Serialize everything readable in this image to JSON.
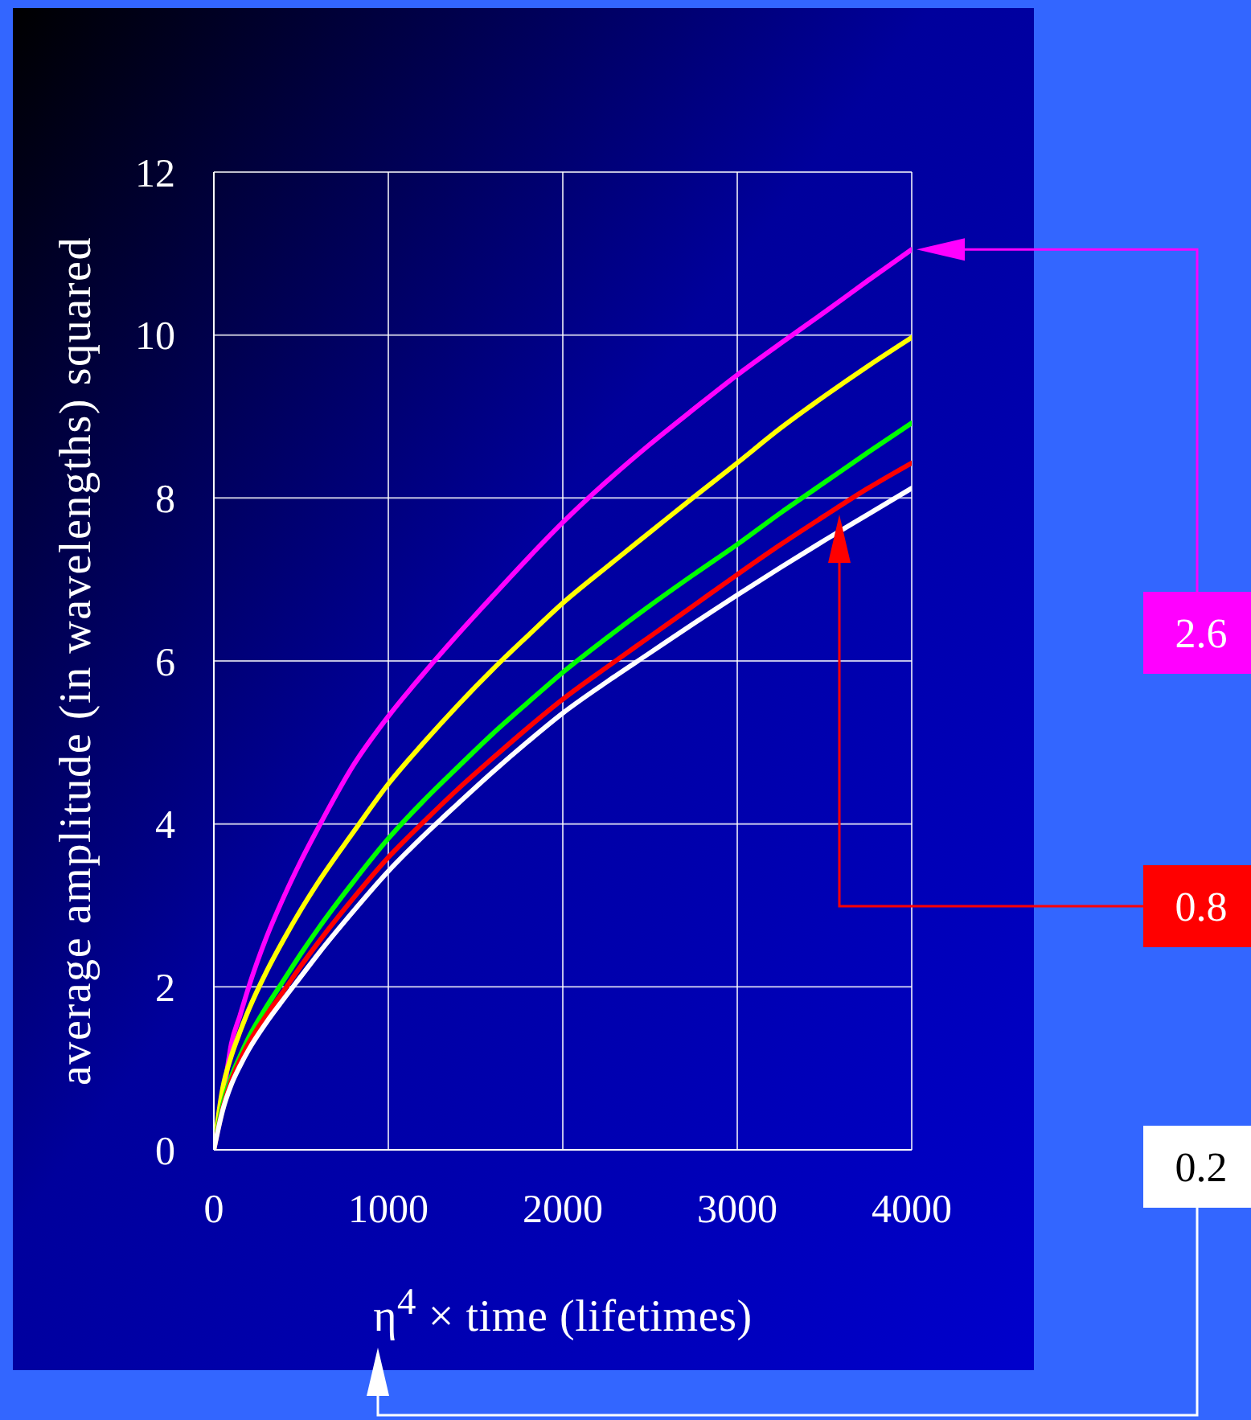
{
  "chart_data": {
    "type": "line",
    "xlabel": "η$^{4}$ × time (lifetimes)",
    "ylabel": "average amplitude (in wavelengths) squared",
    "x": [
      0,
      50,
      100,
      150,
      200,
      300,
      400,
      500,
      600,
      800,
      1000,
      1200,
      1400,
      1600,
      1800,
      2000,
      2250,
      2500,
      2750,
      3000,
      3250,
      3500,
      3750,
      4000
    ],
    "series": [
      {
        "name": "2.6",
        "color": "#ff00ff",
        "values": [
          0,
          0.6,
          1.3,
          1.65,
          2.0,
          2.6,
          3.1,
          3.55,
          3.96,
          4.72,
          5.32,
          5.84,
          6.33,
          6.8,
          7.26,
          7.7,
          8.2,
          8.66,
          9.09,
          9.51,
          9.9,
          10.28,
          10.67,
          11.05
        ]
      },
      {
        "color": "#ffff00",
        "values": [
          0,
          0.75,
          1.15,
          1.45,
          1.72,
          2.18,
          2.58,
          2.95,
          3.29,
          3.9,
          4.49,
          4.99,
          5.46,
          5.9,
          6.31,
          6.71,
          7.15,
          7.58,
          8.01,
          8.43,
          8.86,
          9.25,
          9.62,
          9.97
        ]
      },
      {
        "color": "#00ff00",
        "values": [
          0,
          0.55,
          0.9,
          1.15,
          1.38,
          1.75,
          2.08,
          2.41,
          2.72,
          3.29,
          3.82,
          4.28,
          4.7,
          5.11,
          5.49,
          5.86,
          6.28,
          6.68,
          7.06,
          7.43,
          7.82,
          8.19,
          8.56,
          8.92
        ]
      },
      {
        "name": "0.8",
        "color": "#ff0000",
        "values": [
          0,
          0.5,
          0.85,
          1.1,
          1.31,
          1.65,
          1.95,
          2.26,
          2.55,
          3.09,
          3.59,
          4.02,
          4.43,
          4.81,
          5.18,
          5.53,
          5.92,
          6.3,
          6.68,
          7.06,
          7.43,
          7.78,
          8.12,
          8.43
        ]
      },
      {
        "name": "0.2",
        "color": "#ffffff",
        "values": [
          0,
          0.48,
          0.8,
          1.03,
          1.23,
          1.56,
          1.85,
          2.13,
          2.41,
          2.93,
          3.42,
          3.85,
          4.25,
          4.64,
          5.01,
          5.36,
          5.74,
          6.1,
          6.46,
          6.81,
          7.15,
          7.48,
          7.8,
          8.12
        ]
      }
    ],
    "xlim": [
      0,
      4000
    ],
    "ylim": [
      0,
      12
    ],
    "xticks": [
      0,
      1000,
      2000,
      3000,
      4000
    ],
    "yticks": [
      0,
      2,
      4,
      6,
      8,
      10,
      12
    ],
    "grid": true
  }
}
